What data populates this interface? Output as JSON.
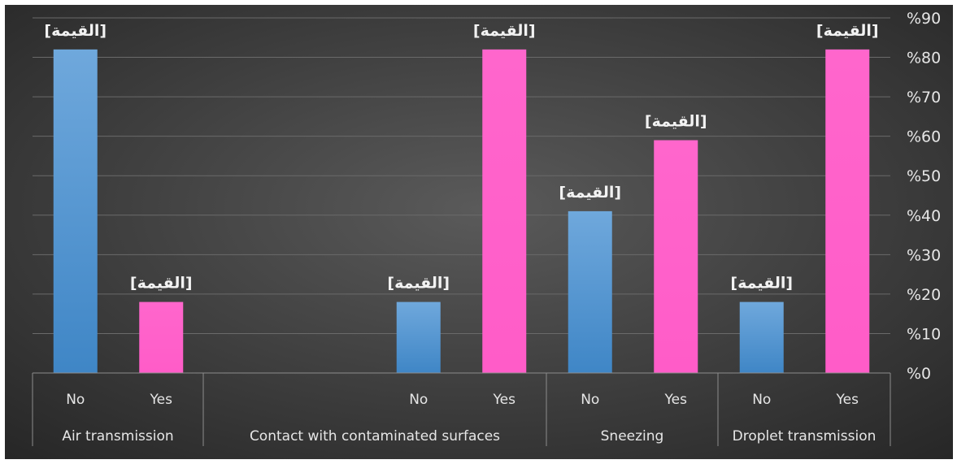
{
  "chart_data": {
    "type": "bar",
    "y_axis_side": "right",
    "ylim": [
      0,
      90
    ],
    "y_ticks": [
      "%0",
      "%10",
      "%20",
      "%30",
      "%40",
      "%50",
      "%60",
      "%70",
      "%80",
      "%90"
    ],
    "grid": true,
    "legend": "none",
    "groups": [
      {
        "label": "Air transmission",
        "bars": [
          {
            "label": "No",
            "value": 82,
            "data_label": "[القيمة]"
          },
          {
            "label": "Yes",
            "value": 18,
            "data_label": "[القيمة]"
          }
        ]
      },
      {
        "label": "Contact with contaminated surfaces",
        "bars": [
          {
            "label": "No",
            "value": 18,
            "data_label": "[القيمة]"
          },
          {
            "label": "Yes",
            "value": 82,
            "data_label": "[القيمة]"
          }
        ]
      },
      {
        "label": "Sneezing",
        "bars": [
          {
            "label": "No",
            "value": 41,
            "data_label": "[القيمة]"
          },
          {
            "label": "Yes",
            "value": 59,
            "data_label": "[القيمة]"
          }
        ]
      },
      {
        "label": "Droplet transmission",
        "bars": [
          {
            "label": "No",
            "value": 18,
            "data_label": "[القيمة]"
          },
          {
            "label": "Yes",
            "value": 82,
            "data_label": "[القيمة]"
          }
        ]
      }
    ],
    "colors": {
      "No": "#5b9bd5",
      "Yes": "#ff66cc",
      "background_center": "#595959",
      "background_edge": "#262626"
    }
  }
}
